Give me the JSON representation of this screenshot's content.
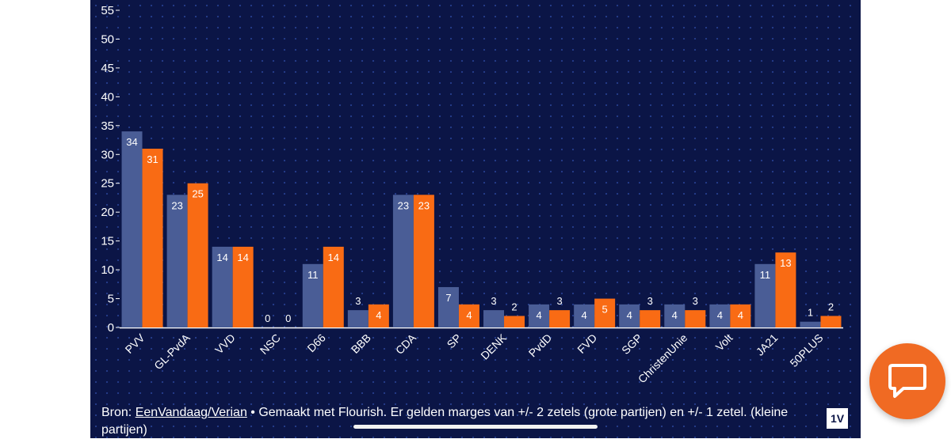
{
  "chart_data": {
    "type": "bar",
    "categories": [
      "PVV",
      "GL-PvdA",
      "VVD",
      "NSC",
      "D66",
      "BBB",
      "CDA",
      "SP",
      "DENK",
      "PvdD",
      "FVD",
      "SGP",
      "ChristenUnie",
      "Volt",
      "JA21",
      "50PLUS"
    ],
    "series": [
      {
        "values": [
          34,
          23,
          14,
          0,
          11,
          3,
          23,
          7,
          3,
          4,
          4,
          4,
          4,
          4,
          11,
          1
        ],
        "color": "#4a5d96"
      },
      {
        "values": [
          31,
          25,
          14,
          0,
          14,
          4,
          23,
          4,
          2,
          3,
          5,
          3,
          3,
          4,
          13,
          2
        ],
        "color": "#f96b14"
      }
    ],
    "ylim": [
      0,
      55
    ],
    "yticks": [
      0,
      5,
      10,
      15,
      20,
      25,
      30,
      35,
      40,
      45,
      50,
      55
    ],
    "grid": false
  },
  "footer": {
    "prefix": "Bron: ",
    "source_link": "EenVandaag/Verian",
    "suffix": " • Gemaakt met Flourish. Er gelden marges van +/- 2 zetels (grote partijen) en +/- 1 zetel. (kleine partijen)"
  },
  "logo_text": "1V",
  "icons": {
    "chat": "chat-bubble-icon"
  },
  "colors": {
    "background": "#0b1546",
    "chat_button": "#f06a23"
  }
}
